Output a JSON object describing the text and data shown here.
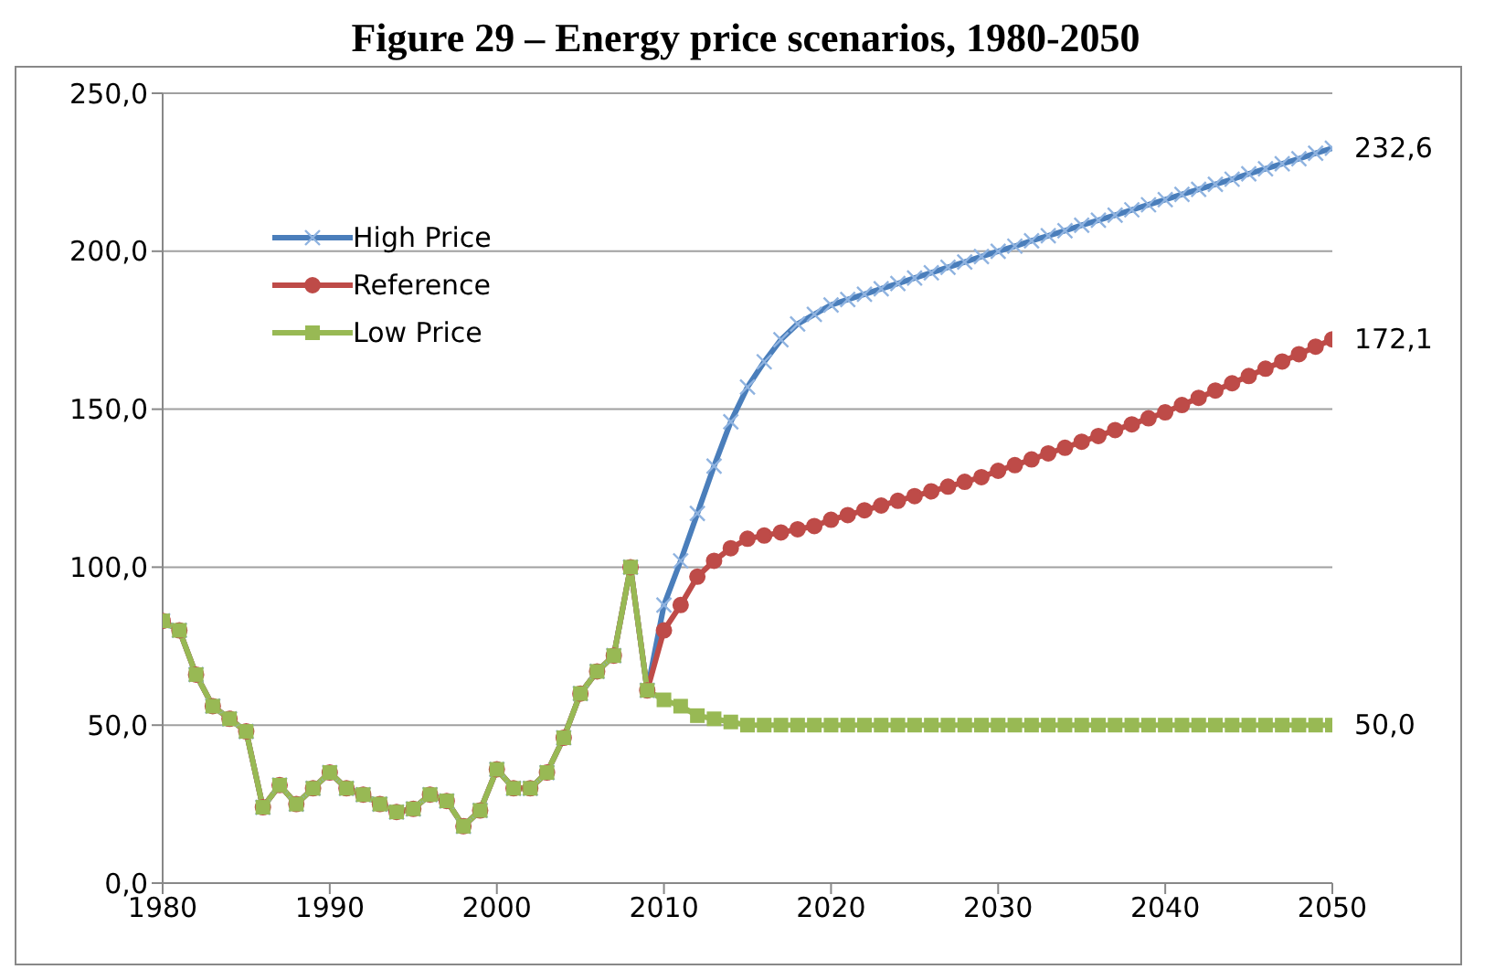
{
  "chart_data": {
    "type": "line",
    "title": "Figure 29 – Energy price scenarios, 1980-2050",
    "x": [
      1980,
      1981,
      1982,
      1983,
      1984,
      1985,
      1986,
      1987,
      1988,
      1989,
      1990,
      1991,
      1992,
      1993,
      1994,
      1995,
      1996,
      1997,
      1998,
      1999,
      2000,
      2001,
      2002,
      2003,
      2004,
      2005,
      2006,
      2007,
      2008,
      2009,
      2010,
      2011,
      2012,
      2013,
      2014,
      2015,
      2016,
      2017,
      2018,
      2019,
      2020,
      2021,
      2022,
      2023,
      2024,
      2025,
      2026,
      2027,
      2028,
      2029,
      2030,
      2031,
      2032,
      2033,
      2034,
      2035,
      2036,
      2037,
      2038,
      2039,
      2040,
      2041,
      2042,
      2043,
      2044,
      2045,
      2046,
      2047,
      2048,
      2049,
      2050
    ],
    "series": [
      {
        "name": "High Price",
        "color": "#4a7ebb",
        "marker": "cross",
        "values": [
          83,
          80,
          66,
          56,
          52,
          48,
          24,
          31,
          25,
          30,
          35,
          30,
          28,
          25,
          22.5,
          23.5,
          28,
          26,
          18,
          23,
          36,
          30,
          30,
          35,
          46,
          60,
          67,
          72,
          100,
          61,
          88,
          102,
          117,
          132,
          146,
          157,
          165,
          172,
          177,
          180,
          183,
          184.7,
          186.4,
          188.1,
          189.8,
          191.5,
          193.2,
          194.9,
          196.6,
          198.3,
          200,
          201.6,
          203.3,
          204.9,
          206.5,
          208.2,
          209.8,
          211.4,
          213.1,
          214.7,
          216.3,
          218,
          219.6,
          221.2,
          222.8,
          224.5,
          226.1,
          227.7,
          229.3,
          231,
          232.6
        ],
        "value_labels": [
          null,
          null,
          null,
          null,
          null,
          null,
          null,
          null,
          null,
          null,
          null,
          null,
          null,
          null,
          null,
          null,
          null,
          null,
          null,
          null,
          null,
          null,
          null,
          null,
          null,
          null,
          null,
          null,
          null,
          null,
          null,
          null,
          null,
          null,
          null,
          null,
          null,
          null,
          null,
          null,
          null,
          null,
          null,
          null,
          null,
          null,
          null,
          null,
          null,
          null,
          null,
          null,
          null,
          null,
          null,
          null,
          null,
          null,
          null,
          null,
          null,
          null,
          null,
          null,
          null,
          null,
          null,
          null,
          null,
          null,
          "232,6"
        ]
      },
      {
        "name": "Reference",
        "color": "#be4b48",
        "marker": "circle",
        "values": [
          83,
          80,
          66,
          56,
          52,
          48,
          24,
          31,
          25,
          30,
          35,
          30,
          28,
          25,
          22.5,
          23.5,
          28,
          26,
          18,
          23,
          36,
          30,
          30,
          35,
          46,
          60,
          67,
          72,
          100,
          61,
          80,
          88,
          97,
          102,
          106,
          109,
          110,
          111,
          112,
          113,
          115,
          116.5,
          118,
          119.5,
          121,
          122.5,
          124,
          125.5,
          127,
          128.5,
          130.5,
          132.3,
          134.1,
          136,
          137.8,
          139.7,
          141.5,
          143.4,
          145.2,
          147.1,
          149,
          151.3,
          153.6,
          155.9,
          158.2,
          160.5,
          162.8,
          165.1,
          167.4,
          169.8,
          172.1
        ],
        "value_labels": [
          null,
          null,
          null,
          null,
          null,
          null,
          null,
          null,
          null,
          null,
          null,
          null,
          null,
          null,
          null,
          null,
          null,
          null,
          null,
          null,
          null,
          null,
          null,
          null,
          null,
          null,
          null,
          null,
          null,
          null,
          null,
          null,
          null,
          null,
          null,
          null,
          null,
          null,
          null,
          null,
          null,
          null,
          null,
          null,
          null,
          null,
          null,
          null,
          null,
          null,
          null,
          null,
          null,
          null,
          null,
          null,
          null,
          null,
          null,
          null,
          null,
          null,
          null,
          null,
          null,
          null,
          null,
          null,
          null,
          null,
          "172,1"
        ]
      },
      {
        "name": "Low Price",
        "color": "#98b954",
        "marker": "square",
        "values": [
          83,
          80,
          66,
          56,
          52,
          48,
          24,
          31,
          25,
          30,
          35,
          30,
          28,
          25,
          22.5,
          23.5,
          28,
          26,
          18,
          23,
          36,
          30,
          30,
          35,
          46,
          60,
          67,
          72,
          100,
          61,
          58,
          56,
          53,
          52,
          51,
          50,
          50,
          50,
          50,
          50,
          50,
          50,
          50,
          50,
          50,
          50,
          50,
          50,
          50,
          50,
          50,
          50,
          50,
          50,
          50,
          50,
          50,
          50,
          50,
          50,
          50,
          50,
          50,
          50,
          50,
          50,
          50,
          50,
          50,
          50,
          50
        ],
        "value_labels": [
          null,
          null,
          null,
          null,
          null,
          null,
          null,
          null,
          null,
          null,
          null,
          null,
          null,
          null,
          null,
          null,
          null,
          null,
          null,
          null,
          null,
          null,
          null,
          null,
          null,
          null,
          null,
          null,
          null,
          null,
          null,
          null,
          null,
          null,
          null,
          null,
          null,
          null,
          null,
          null,
          null,
          null,
          null,
          null,
          null,
          null,
          null,
          null,
          null,
          null,
          null,
          null,
          null,
          null,
          null,
          null,
          null,
          null,
          null,
          null,
          null,
          null,
          null,
          null,
          null,
          null,
          null,
          null,
          null,
          null,
          "50,0"
        ]
      }
    ],
    "xlim": [
      1980,
      2050
    ],
    "xticks": [
      1980,
      1990,
      2000,
      2010,
      2020,
      2030,
      2040,
      2050
    ],
    "ylim": [
      0,
      250
    ],
    "yticks": [
      {
        "value": 0,
        "label": "0,0"
      },
      {
        "value": 50,
        "label": "50,0"
      },
      {
        "value": 100,
        "label": "100,0"
      },
      {
        "value": 150,
        "label": "150,0"
      },
      {
        "value": 200,
        "label": "200,0"
      },
      {
        "value": 250,
        "label": "250,0"
      }
    ],
    "grid": "y",
    "legend": "top left"
  }
}
